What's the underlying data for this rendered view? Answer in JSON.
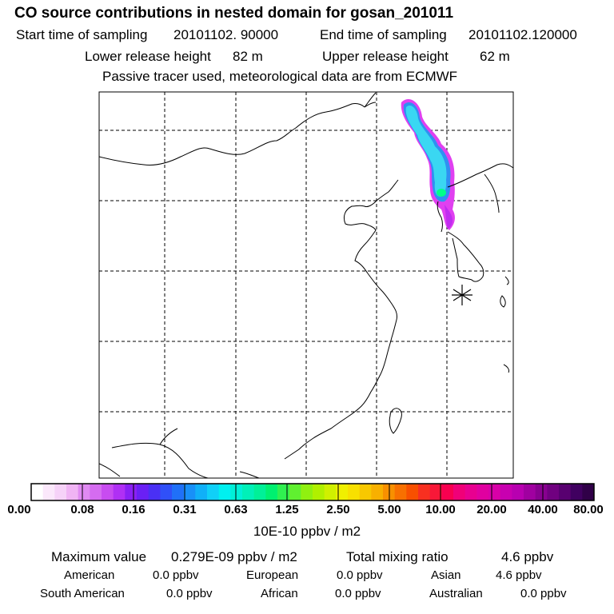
{
  "header": {
    "title": "CO  source contributions in nested domain for gosan_201011",
    "start_label": "Start time of sampling",
    "start_value": "20101102. 90000",
    "end_label": "End time of sampling",
    "end_value": "20101102.120000",
    "lower_label": "Lower release height",
    "lower_value": "82 m",
    "upper_label": "Upper release height",
    "upper_value": "62 m",
    "note": "Passive tracer used, meteorological data are from ECMWF"
  },
  "map": {
    "receptor_marker": "asterisk-receptor-icon",
    "plume_colors": {
      "core": "#3ad7f2",
      "mid": "#2fc2f0",
      "edge": "#8a4cf2",
      "outer": "#e040f0",
      "hot": "#00ff8a"
    }
  },
  "colorbar": {
    "ticks": [
      "0.00",
      "0.08",
      "0.16",
      "0.31",
      "0.63",
      "1.25",
      "2.50",
      "5.00",
      "10.00",
      "20.00",
      "40.00",
      "80.00"
    ],
    "unit": "10E-10 ppbv / m2",
    "colors": [
      "#ffffff",
      "#fbe8fb",
      "#f6d2f8",
      "#f0b4f4",
      "#e08af2",
      "#d56cf0",
      "#c84cf0",
      "#b030f4",
      "#8a20f4",
      "#6a20f4",
      "#4a30f4",
      "#3050f8",
      "#2070f8",
      "#1890f8",
      "#10b0f8",
      "#10d0f8",
      "#00f0f0",
      "#00f0d8",
      "#00f0b8",
      "#00f098",
      "#00f070",
      "#30f050",
      "#60f030",
      "#90f010",
      "#b0f000",
      "#d0f000",
      "#f0f000",
      "#f8e000",
      "#f8c800",
      "#f8b000",
      "#f89000",
      "#f87000",
      "#f85000",
      "#f83020",
      "#f81838",
      "#f80050",
      "#f00078",
      "#e80090",
      "#e000a0",
      "#d800a8",
      "#c800b0",
      "#b800b0",
      "#a000a0",
      "#880090",
      "#700080",
      "#580070",
      "#400060",
      "#300048"
    ]
  },
  "footer": {
    "max_label": "Maximum value",
    "max_value": "0.279E-09 ppbv / m2",
    "total_label": "Total mixing ratio",
    "total_value": "4.6 ppbv",
    "sources": [
      {
        "name": "American",
        "value": "0.0 ppbv"
      },
      {
        "name": "European",
        "value": "0.0 ppbv"
      },
      {
        "name": "Asian",
        "value": "4.6 ppbv"
      },
      {
        "name": "South American",
        "value": "0.0 ppbv"
      },
      {
        "name": "African",
        "value": "0.0 ppbv"
      },
      {
        "name": "Australian",
        "value": "0.0 ppbv"
      }
    ]
  }
}
